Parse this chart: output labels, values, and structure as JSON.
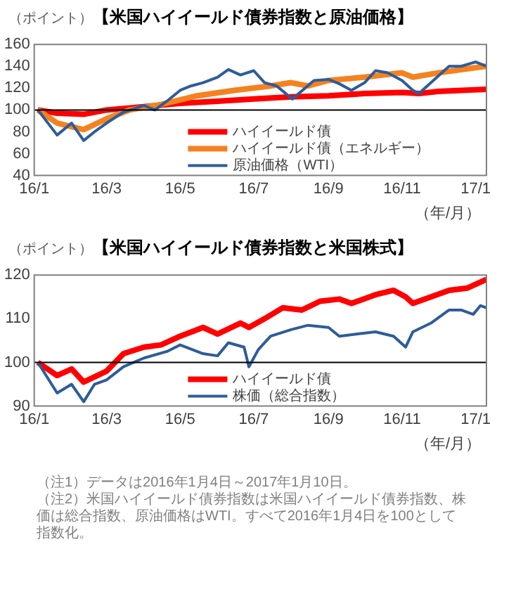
{
  "chart_data": [
    {
      "type": "line",
      "title": "【米国ハイイールド債券指数と原油価格】",
      "ylabel": "（ポイント）",
      "xlabel": "（年/月）",
      "xlim": [
        "2016-01-01",
        "2017-01-10"
      ],
      "xticks": [
        {
          "value": "2016-01",
          "label": "16/1"
        },
        {
          "value": "2016-03",
          "label": "16/3"
        },
        {
          "value": "2016-05",
          "label": "16/5"
        },
        {
          "value": "2016-07",
          "label": "16/7"
        },
        {
          "value": "2016-09",
          "label": "16/9"
        },
        {
          "value": "2016-11",
          "label": "16/11"
        },
        {
          "value": "2017-01",
          "label": "17/1"
        }
      ],
      "ylim": [
        40,
        160
      ],
      "yticks": [
        40,
        60,
        80,
        100,
        120,
        140,
        160
      ],
      "grid": false,
      "legend": "bottom right",
      "marker": "none",
      "ref_lines": [
        {
          "axis": "y",
          "value": 100,
          "color": "#000000"
        }
      ],
      "series": [
        {
          "name": "ハイイールド債",
          "color": "#ff0000",
          "x": [
            "2016-01-04",
            "2016-01-20",
            "2016-02-11",
            "2016-03-01",
            "2016-04-01",
            "2016-05-01",
            "2016-06-01",
            "2016-07-01",
            "2016-08-01",
            "2016-09-01",
            "2016-10-01",
            "2016-11-01",
            "2016-11-15",
            "2016-12-01",
            "2017-01-10"
          ],
          "values": [
            100,
            97,
            96,
            100,
            103,
            106,
            108,
            110,
            112,
            113,
            115,
            116,
            115,
            117,
            119
          ]
        },
        {
          "name": "ハイイールド債（エネルギー）",
          "color": "#f5821f",
          "x": [
            "2016-01-04",
            "2016-01-20",
            "2016-02-11",
            "2016-03-01",
            "2016-03-20",
            "2016-04-15",
            "2016-05-15",
            "2016-06-15",
            "2016-07-15",
            "2016-08-01",
            "2016-08-15",
            "2016-09-01",
            "2016-10-01",
            "2016-11-01",
            "2016-11-10",
            "2016-12-01",
            "2016-12-20",
            "2017-01-10"
          ],
          "values": [
            100,
            88,
            82,
            92,
            100,
            105,
            113,
            118,
            122,
            125,
            122,
            127,
            130,
            134,
            130,
            134,
            137,
            140
          ]
        },
        {
          "name": "原油価格（WTI）",
          "color": "#2e5c9a",
          "x": [
            "2016-01-04",
            "2016-01-20",
            "2016-02-01",
            "2016-02-11",
            "2016-02-20",
            "2016-03-01",
            "2016-03-15",
            "2016-04-01",
            "2016-04-10",
            "2016-04-20",
            "2016-05-01",
            "2016-05-10",
            "2016-05-20",
            "2016-06-01",
            "2016-06-10",
            "2016-06-20",
            "2016-07-01",
            "2016-07-10",
            "2016-07-20",
            "2016-08-02",
            "2016-08-20",
            "2016-09-01",
            "2016-09-10",
            "2016-09-20",
            "2016-10-01",
            "2016-10-10",
            "2016-10-20",
            "2016-11-01",
            "2016-11-10",
            "2016-11-15",
            "2016-11-30",
            "2016-12-10",
            "2016-12-20",
            "2017-01-01",
            "2017-01-10"
          ],
          "values": [
            100,
            77,
            88,
            72,
            80,
            88,
            98,
            104,
            100,
            108,
            118,
            122,
            125,
            130,
            137,
            132,
            136,
            125,
            122,
            110,
            127,
            128,
            124,
            118,
            125,
            136,
            134,
            127,
            118,
            115,
            130,
            140,
            140,
            144,
            140
          ]
        }
      ]
    },
    {
      "type": "line",
      "title": "【米国ハイイールド債券指数と米国株式】",
      "ylabel": "（ポイント）",
      "xlabel": "（年/月）",
      "xlim": [
        "2016-01-01",
        "2017-01-10"
      ],
      "xticks": [
        {
          "value": "2016-01",
          "label": "16/1"
        },
        {
          "value": "2016-03",
          "label": "16/3"
        },
        {
          "value": "2016-05",
          "label": "16/5"
        },
        {
          "value": "2016-07",
          "label": "16/7"
        },
        {
          "value": "2016-09",
          "label": "16/9"
        },
        {
          "value": "2016-11",
          "label": "16/11"
        },
        {
          "value": "2017-01",
          "label": "17/1"
        }
      ],
      "ylim": [
        90,
        120
      ],
      "yticks": [
        90,
        100,
        110,
        120
      ],
      "grid": false,
      "legend": "bottom right",
      "marker": "none",
      "ref_lines": [
        {
          "axis": "y",
          "value": 100,
          "color": "#000000"
        }
      ],
      "annotations": [
        "（注1）データは2016年1月4日～2017年1月10日。",
        "（注2）米国ハイイールド債券指数は米国ハイイールド債券指数、株価は総合指数、原油価格はWTI。すべて2016年1月4日を100として指数化。"
      ],
      "series": [
        {
          "name": "ハイイールド債",
          "color": "#ff0000",
          "x": [
            "2016-01-04",
            "2016-01-20",
            "2016-02-01",
            "2016-02-11",
            "2016-03-01",
            "2016-03-15",
            "2016-04-01",
            "2016-04-15",
            "2016-05-01",
            "2016-05-20",
            "2016-06-01",
            "2016-06-20",
            "2016-06-27",
            "2016-07-10",
            "2016-07-25",
            "2016-08-10",
            "2016-08-25",
            "2016-09-10",
            "2016-09-20",
            "2016-10-10",
            "2016-10-25",
            "2016-11-04",
            "2016-11-10",
            "2016-11-25",
            "2016-12-10",
            "2016-12-25",
            "2017-01-10"
          ],
          "values": [
            100,
            97,
            98.5,
            95.5,
            98,
            102,
            103.5,
            104,
            106,
            108,
            106.5,
            109,
            108,
            110,
            112.5,
            112,
            114,
            114.5,
            113.5,
            115.5,
            116.5,
            115,
            113.5,
            115,
            116.5,
            117,
            119
          ]
        },
        {
          "name": "株価（総合指数）",
          "color": "#2e5c9a",
          "x": [
            "2016-01-04",
            "2016-01-20",
            "2016-02-01",
            "2016-02-11",
            "2016-02-20",
            "2016-03-01",
            "2016-03-15",
            "2016-04-01",
            "2016-04-20",
            "2016-05-01",
            "2016-05-20",
            "2016-06-01",
            "2016-06-10",
            "2016-06-23",
            "2016-06-27",
            "2016-07-05",
            "2016-07-15",
            "2016-08-01",
            "2016-08-15",
            "2016-09-01",
            "2016-09-10",
            "2016-09-25",
            "2016-10-10",
            "2016-10-25",
            "2016-11-04",
            "2016-11-10",
            "2016-11-25",
            "2016-12-10",
            "2016-12-20",
            "2016-12-30",
            "2017-01-05",
            "2017-01-10"
          ],
          "values": [
            100,
            93,
            95,
            91,
            95,
            96,
            99,
            101,
            102.5,
            104,
            102,
            101.5,
            104.5,
            103.5,
            99,
            103,
            106,
            107.5,
            108.5,
            108,
            106,
            106.5,
            107,
            106,
            103.5,
            107,
            109,
            112,
            112,
            111,
            113,
            112.5
          ]
        }
      ]
    }
  ]
}
